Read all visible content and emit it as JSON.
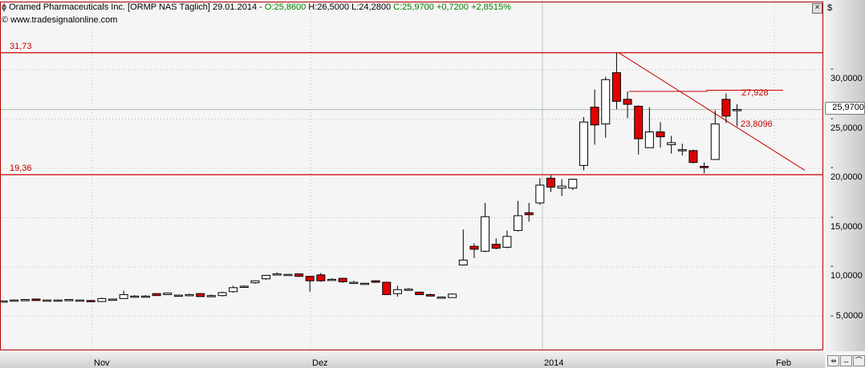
{
  "header": {
    "name": "Oramed Pharmaceuticals Inc. [ORMP NAS  Täglich] 29.01.2014 - ",
    "open": "O:25,8600",
    "high": "H:26,5000",
    "low": "L:24,2800",
    "close": "C:25,9700 +0,7200 +2,8515%",
    "source": "© www.tradesignalonline.com"
  },
  "currency": "$",
  "price_tag": "25,9700",
  "level_labels": {
    "resistance": "31,73",
    "support": "19,36",
    "high_line": "27,928",
    "trend_value": "23,8096"
  },
  "colors": {
    "up": "#ffffff",
    "down": "#e00000",
    "lines": "#cc0000"
  },
  "chart_data": {
    "type": "candlestick",
    "ylim": [
      2.5,
      37
    ],
    "yticks": [
      "30,0000",
      "25,0000",
      "20,0000",
      "15,0000",
      "10,0000",
      "5,0000"
    ],
    "ytick_values": [
      30,
      25,
      20,
      15,
      10,
      5
    ],
    "xticks": [
      "Nov",
      "Dez",
      "2014",
      "Feb"
    ],
    "grid": true,
    "horizontal_levels": [
      31.73,
      19.36,
      27.928
    ],
    "last_close": 25.97,
    "ohlc": [
      [
        6.55,
        6.6,
        6.5,
        6.55
      ],
      [
        6.65,
        6.7,
        6.6,
        6.65
      ],
      [
        6.7,
        6.75,
        6.65,
        6.7
      ],
      [
        6.75,
        6.8,
        6.6,
        6.6
      ],
      [
        6.65,
        6.7,
        6.6,
        6.65
      ],
      [
        6.6,
        6.7,
        6.55,
        6.65
      ],
      [
        6.7,
        6.75,
        6.65,
        6.7
      ],
      [
        6.65,
        6.7,
        6.6,
        6.65
      ],
      [
        6.6,
        6.65,
        6.5,
        6.55
      ],
      [
        6.5,
        6.9,
        6.45,
        6.8
      ],
      [
        6.75,
        6.8,
        6.7,
        6.75
      ],
      [
        6.8,
        7.6,
        6.8,
        7.2
      ],
      [
        7.05,
        7.15,
        6.9,
        7.05
      ],
      [
        7.05,
        7.15,
        6.9,
        7.05
      ],
      [
        7.3,
        7.35,
        7.1,
        7.1
      ],
      [
        7.2,
        7.35,
        7.15,
        7.35
      ],
      [
        7.1,
        7.2,
        7.05,
        7.15
      ],
      [
        7.2,
        7.3,
        7.15,
        7.2
      ],
      [
        7.3,
        7.35,
        7.0,
        7.0
      ],
      [
        7.1,
        7.2,
        7.0,
        7.1
      ],
      [
        7.1,
        7.5,
        7.0,
        7.4
      ],
      [
        7.5,
        8.1,
        7.4,
        7.9
      ],
      [
        8.05,
        8.15,
        7.95,
        8.05
      ],
      [
        8.4,
        8.6,
        8.3,
        8.6
      ],
      [
        8.8,
        9.2,
        8.7,
        9.15
      ],
      [
        9.3,
        9.45,
        9.2,
        9.3
      ],
      [
        9.2,
        9.3,
        9.15,
        9.25
      ],
      [
        9.3,
        9.35,
        9.0,
        9.05
      ],
      [
        9.05,
        9.1,
        7.5,
        8.6
      ],
      [
        9.2,
        9.4,
        8.5,
        8.6
      ],
      [
        8.75,
        8.85,
        8.7,
        8.75
      ],
      [
        8.85,
        8.9,
        8.4,
        8.5
      ],
      [
        8.45,
        8.6,
        8.4,
        8.45
      ],
      [
        8.35,
        8.4,
        8.3,
        8.35
      ],
      [
        8.6,
        8.65,
        8.4,
        8.45
      ],
      [
        8.45,
        8.5,
        7.2,
        7.2
      ],
      [
        7.3,
        8.1,
        7.0,
        7.7
      ],
      [
        7.75,
        7.85,
        7.6,
        7.75
      ],
      [
        7.45,
        7.5,
        7.2,
        7.2
      ],
      [
        7.2,
        7.3,
        7.0,
        7.05
      ],
      [
        6.95,
        7.0,
        6.9,
        6.95
      ],
      [
        6.9,
        7.3,
        6.9,
        7.25
      ],
      [
        10.2,
        13.8,
        10.2,
        10.7
      ],
      [
        12.1,
        12.4,
        10.9,
        11.8
      ],
      [
        11.6,
        16.5,
        11.5,
        15.1
      ],
      [
        12.3,
        12.9,
        11.8,
        11.9
      ],
      [
        12.0,
        13.7,
        11.9,
        13.1
      ],
      [
        13.7,
        16.7,
        13.6,
        15.2
      ],
      [
        15.5,
        16.5,
        14.6,
        15.3
      ],
      [
        16.5,
        19.0,
        16.3,
        18.3
      ],
      [
        19.0,
        19.3,
        17.6,
        18.1
      ],
      [
        18.0,
        18.9,
        17.2,
        18.2
      ],
      [
        18.0,
        18.9,
        17.8,
        18.9
      ],
      [
        20.3,
        25.2,
        19.8,
        24.7
      ],
      [
        26.2,
        28.0,
        22.4,
        24.4
      ],
      [
        24.5,
        29.3,
        23.1,
        29.0
      ],
      [
        29.7,
        31.73,
        26.0,
        26.8
      ],
      [
        27.0,
        27.8,
        25.1,
        26.5
      ],
      [
        26.3,
        26.4,
        21.4,
        23.0
      ],
      [
        22.1,
        26.2,
        22.1,
        23.7
      ],
      [
        23.7,
        24.7,
        22.1,
        23.2
      ],
      [
        22.4,
        23.3,
        21.5,
        22.6
      ],
      [
        21.9,
        22.5,
        21.3,
        21.9
      ],
      [
        21.8,
        21.9,
        20.5,
        20.6
      ],
      [
        20.2,
        20.6,
        19.5,
        20.1
      ],
      [
        20.9,
        25.9,
        20.9,
        24.5
      ],
      [
        27.0,
        27.6,
        24.6,
        25.3
      ],
      [
        25.86,
        26.5,
        24.28,
        25.97
      ]
    ],
    "trendline": {
      "from_price": 31.73,
      "to_price": 19.8
    }
  }
}
